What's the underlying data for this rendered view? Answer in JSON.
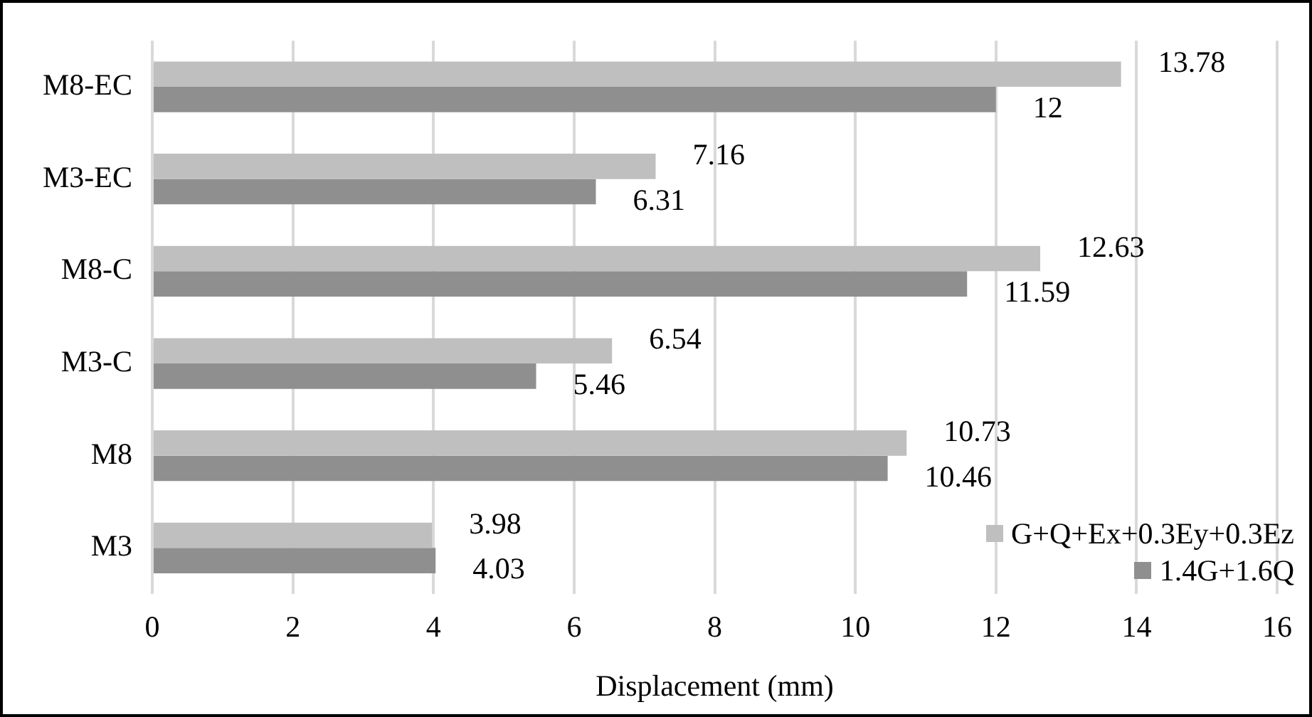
{
  "chart_data": {
    "type": "bar",
    "orientation": "horizontal",
    "xlabel": "Displacement (mm)",
    "categories": [
      "M8-EC",
      "M3-EC",
      "M8-C",
      "M3-C",
      "M8",
      "M3"
    ],
    "series": [
      {
        "name": "G+Q+Ex+0.3Ey+0.3Ez",
        "color": "#bfbfbf",
        "values": [
          13.78,
          7.16,
          12.63,
          6.54,
          10.73,
          3.98
        ]
      },
      {
        "name": "1.4G+1.6Q",
        "color": "#8f8f8f",
        "values": [
          12,
          6.31,
          11.59,
          5.46,
          10.46,
          4.03
        ]
      }
    ],
    "xlim": [
      0,
      16
    ],
    "xticks": [
      0,
      2,
      4,
      6,
      8,
      10,
      12,
      14,
      16
    ],
    "grid": "x",
    "legend": "bottom right",
    "data_labels": true
  }
}
